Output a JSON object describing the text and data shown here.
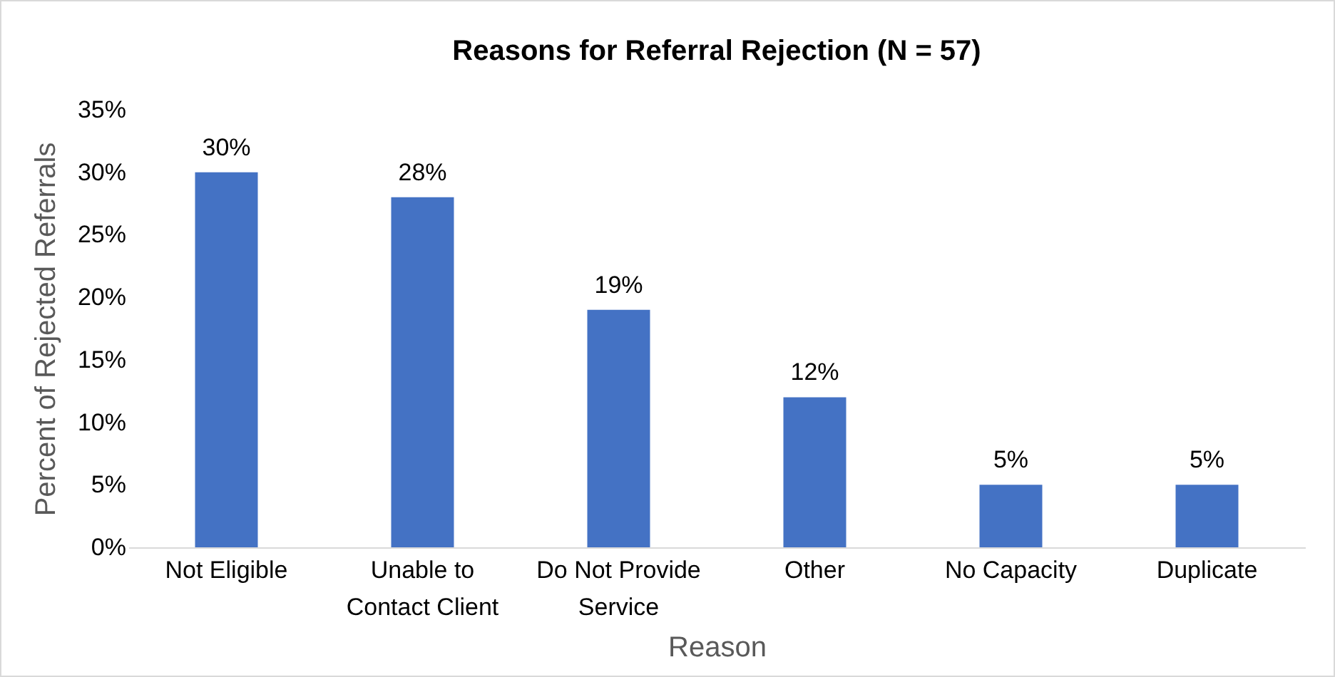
{
  "chart_data": {
    "type": "bar",
    "title": "Reasons for Referral Rejection (N = 57)",
    "xlabel": "Reason",
    "ylabel": "Percent of Rejected Referrals",
    "categories": [
      "Not Eligible",
      "Unable to Contact Client",
      "Do Not Provide Service",
      "Other",
      "No Capacity",
      "Duplicate"
    ],
    "values": [
      30,
      28,
      19,
      12,
      5,
      5
    ],
    "value_labels": [
      "30%",
      "28%",
      "19%",
      "12%",
      "5%",
      "5%"
    ],
    "color": "#4472c4",
    "ylim": [
      0,
      35
    ],
    "yticks": [
      {
        "value": 0,
        "label": "0%"
      },
      {
        "value": 5,
        "label": "5%"
      },
      {
        "value": 10,
        "label": "10%"
      },
      {
        "value": 15,
        "label": "15%"
      },
      {
        "value": 20,
        "label": "20%"
      },
      {
        "value": 25,
        "label": "25%"
      },
      {
        "value": 30,
        "label": "30%"
      },
      {
        "value": 35,
        "label": "35%"
      }
    ]
  }
}
